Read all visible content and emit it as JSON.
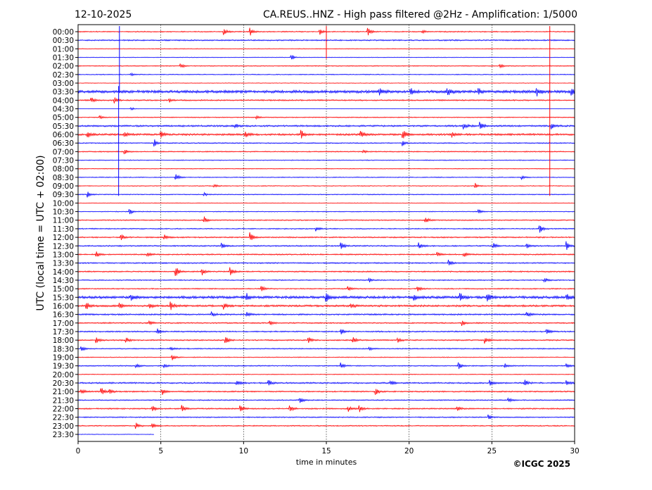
{
  "chart_data": {
    "type": "line",
    "subtype": "helicorder",
    "date": "12-10-2025",
    "title": "CA.REUS..HNZ - High pass filtered @2Hz - Amplification: 1/5000",
    "xlabel": "time in minutes",
    "ylabel": "UTC (local time = UTC + 02:00)",
    "xlim": [
      0,
      30
    ],
    "xticks": [
      "0",
      "5",
      "10",
      "15",
      "20",
      "25",
      "30"
    ],
    "grid": "vertical dotted every 5 minutes",
    "copyright": "©ICGC 2025",
    "series_colors": [
      "#ff0000",
      "#0000ff"
    ],
    "rows": [
      "00:00",
      "00:30",
      "01:00",
      "01:30",
      "02:00",
      "02:30",
      "03:00",
      "03:30",
      "04:00",
      "04:30",
      "05:00",
      "05:30",
      "06:00",
      "06:30",
      "07:00",
      "07:30",
      "08:00",
      "08:30",
      "09:00",
      "09:30",
      "10:00",
      "10:30",
      "11:00",
      "11:30",
      "12:00",
      "12:30",
      "13:00",
      "13:30",
      "14:00",
      "14:30",
      "15:00",
      "15:30",
      "16:00",
      "16:30",
      "17:00",
      "17:30",
      "18:00",
      "18:30",
      "19:00",
      "19:30",
      "20:00",
      "20:30",
      "21:00",
      "21:30",
      "22:00",
      "22:30",
      "23:00",
      "23:30"
    ],
    "noise": [
      0.5,
      0.6,
      0.3,
      0.3,
      0.4,
      0.4,
      0.3,
      1.3,
      0.6,
      0.1,
      0.4,
      0.8,
      0.9,
      0.5,
      0.5,
      0.4,
      0.3,
      0.4,
      0.4,
      0.4,
      0.3,
      0.4,
      0.5,
      0.5,
      0.6,
      0.6,
      0.6,
      0.6,
      0.6,
      0.5,
      0.5,
      1.2,
      0.9,
      0.7,
      0.6,
      0.6,
      0.6,
      0.5,
      0.4,
      0.5,
      0.3,
      0.7,
      0.6,
      0.5,
      0.6,
      0.5,
      0.5,
      0.3
    ],
    "row_end_minute": {
      "23:30": 4.6
    },
    "events": {
      "00:00": [
        [
          8.8,
          3
        ],
        [
          10.4,
          4
        ],
        [
          14.6,
          3
        ],
        [
          17.5,
          4
        ],
        [
          20.8,
          1.5
        ]
      ],
      "01:30": [
        [
          12.9,
          3
        ]
      ],
      "02:00": [
        [
          6.2,
          3
        ],
        [
          25.5,
          2
        ]
      ],
      "02:30": [
        [
          3.2,
          1.5
        ]
      ],
      "03:30": [
        [
          18.2,
          4
        ],
        [
          20.1,
          3
        ],
        [
          22.3,
          4
        ],
        [
          24.2,
          3
        ],
        [
          27.7,
          4
        ],
        [
          29.8,
          4
        ]
      ],
      "04:00": [
        [
          0.8,
          3
        ],
        [
          2.2,
          3
        ],
        [
          5.5,
          2
        ]
      ],
      "04:30": [
        [
          3.2,
          2
        ]
      ],
      "05:00": [
        [
          1.3,
          2
        ],
        [
          10.8,
          1.5
        ]
      ],
      "05:30": [
        [
          9.5,
          2
        ],
        [
          23.3,
          3
        ],
        [
          24.3,
          4
        ],
        [
          28.6,
          3
        ]
      ],
      "06:00": [
        [
          0.6,
          3
        ],
        [
          2.8,
          3
        ],
        [
          5.0,
          3
        ],
        [
          10.1,
          3
        ],
        [
          13.5,
          4
        ],
        [
          17.1,
          3
        ],
        [
          19.6,
          6
        ],
        [
          22.6,
          3
        ]
      ],
      "06:30": [
        [
          4.6,
          4
        ],
        [
          19.6,
          3
        ]
      ],
      "07:00": [
        [
          2.8,
          3
        ],
        [
          17.2,
          1.5
        ]
      ],
      "08:30": [
        [
          5.9,
          4
        ],
        [
          26.8,
          2
        ]
      ],
      "09:00": [
        [
          8.2,
          2
        ],
        [
          24.0,
          2.5
        ]
      ],
      "09:30": [
        [
          0.6,
          2.5
        ],
        [
          7.6,
          2
        ]
      ],
      "10:30": [
        [
          3.1,
          3
        ],
        [
          24.2,
          2.5
        ]
      ],
      "11:00": [
        [
          7.6,
          4
        ],
        [
          21.0,
          3
        ]
      ],
      "11:30": [
        [
          14.4,
          2
        ],
        [
          27.9,
          4
        ]
      ],
      "12:00": [
        [
          2.6,
          3
        ],
        [
          5.2,
          3
        ],
        [
          10.4,
          5
        ]
      ],
      "12:30": [
        [
          8.7,
          2.5
        ],
        [
          15.9,
          3
        ],
        [
          20.6,
          3
        ],
        [
          25.1,
          3
        ],
        [
          27.1,
          3
        ],
        [
          29.5,
          4
        ]
      ],
      "13:00": [
        [
          1.1,
          3
        ],
        [
          4.2,
          2.5
        ],
        [
          21.7,
          3
        ],
        [
          23.3,
          2.5
        ]
      ],
      "13:30": [
        [
          22.4,
          3
        ]
      ],
      "14:00": [
        [
          5.9,
          5
        ],
        [
          7.5,
          3
        ],
        [
          9.2,
          4
        ]
      ],
      "14:30": [
        [
          17.6,
          2
        ],
        [
          28.2,
          2.5
        ]
      ],
      "15:00": [
        [
          11.1,
          3
        ],
        [
          16.3,
          2.5
        ],
        [
          20.5,
          4
        ]
      ],
      "15:30": [
        [
          3.2,
          3
        ],
        [
          10.2,
          3
        ],
        [
          15.0,
          4
        ],
        [
          20.3,
          3
        ],
        [
          23.1,
          4
        ],
        [
          24.7,
          4
        ],
        [
          29.5,
          4
        ]
      ],
      "16:00": [
        [
          0.5,
          4
        ],
        [
          2.5,
          3
        ],
        [
          4.3,
          2.5
        ],
        [
          5.6,
          4
        ],
        [
          8.8,
          3
        ],
        [
          16.5,
          2.5
        ]
      ],
      "16:30": [
        [
          8.1,
          2.5
        ],
        [
          10.2,
          2.5
        ],
        [
          27.1,
          3
        ]
      ],
      "17:00": [
        [
          4.3,
          2
        ],
        [
          11.6,
          2
        ],
        [
          23.2,
          2.5
        ]
      ],
      "17:30": [
        [
          4.8,
          2.5
        ],
        [
          15.9,
          3
        ],
        [
          28.3,
          4
        ]
      ],
      "18:00": [
        [
          1.1,
          3
        ],
        [
          2.9,
          3
        ],
        [
          8.9,
          4
        ],
        [
          13.9,
          4
        ],
        [
          16.6,
          3
        ],
        [
          19.3,
          3
        ],
        [
          24.6,
          3
        ]
      ],
      "18:30": [
        [
          0.2,
          3
        ],
        [
          5.6,
          2
        ],
        [
          17.6,
          1.5
        ]
      ],
      "19:00": [
        [
          5.7,
          3
        ]
      ],
      "19:30": [
        [
          3.5,
          2.5
        ],
        [
          5.2,
          2.5
        ],
        [
          15.9,
          3
        ],
        [
          23.0,
          3
        ],
        [
          25.8,
          2
        ],
        [
          29.5,
          3
        ]
      ],
      "20:30": [
        [
          9.6,
          3
        ],
        [
          11.5,
          3
        ],
        [
          18.9,
          2.5
        ],
        [
          24.9,
          3
        ],
        [
          27.0,
          3
        ],
        [
          29.5,
          3
        ]
      ],
      "21:00": [
        [
          0.2,
          3
        ],
        [
          1.4,
          4
        ],
        [
          1.9,
          3
        ],
        [
          5.1,
          3
        ],
        [
          18.0,
          3
        ]
      ],
      "21:30": [
        [
          13.4,
          4
        ],
        [
          26.0,
          3
        ]
      ],
      "22:00": [
        [
          4.5,
          3
        ],
        [
          6.3,
          3.5
        ],
        [
          9.8,
          4
        ],
        [
          12.8,
          3
        ],
        [
          16.3,
          3
        ],
        [
          17.0,
          3
        ],
        [
          22.9,
          3
        ]
      ],
      "22:30": [
        [
          24.8,
          2.5
        ]
      ],
      "23:00": [
        [
          3.5,
          3
        ],
        [
          4.5,
          2.5
        ]
      ]
    },
    "long_spikes": [
      {
        "minute": 2.45,
        "from_row": "03:30",
        "to_row": "09:30",
        "color": "#0000ff"
      },
      {
        "minute": 2.5,
        "from_row": "00:00",
        "to_row": "03:30",
        "color": "#0000ff"
      },
      {
        "minute": 28.5,
        "from_row": "00:00",
        "to_row": "09:30",
        "color": "#ff0000"
      },
      {
        "minute": 15.0,
        "from_row": "00:00",
        "to_row": "01:30",
        "color": "#ff0000"
      }
    ]
  }
}
